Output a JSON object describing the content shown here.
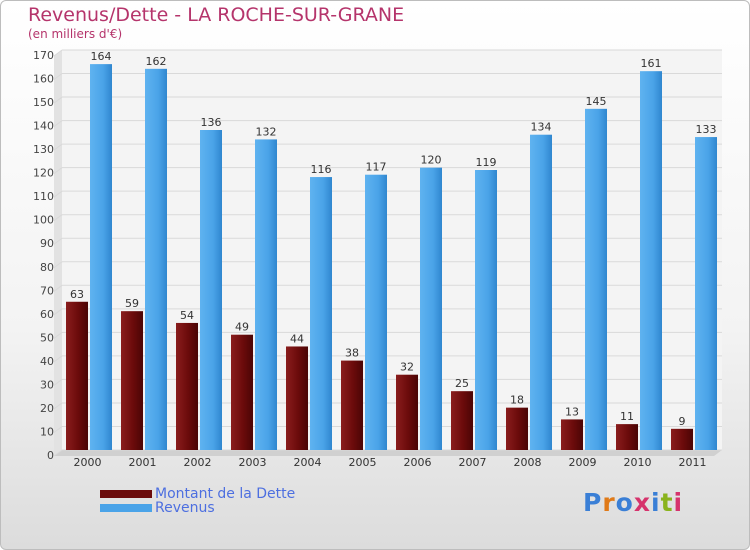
{
  "header": {
    "title": "Revenus/Dette - LA ROCHE-SUR-GRANE",
    "subtitle": "(en milliers d'€)"
  },
  "legend": {
    "items": [
      {
        "label": "Montant de la Dette",
        "color": "#6b0b0b"
      },
      {
        "label": "Revenus",
        "color": "#4aa3e8"
      }
    ]
  },
  "logo": {
    "text": "Proxiti",
    "colors": [
      "#3a7fd6",
      "#e07a18",
      "#3a7fd6",
      "#d6336c",
      "#3a7fd6",
      "#8ab31d",
      "#d6336c"
    ]
  },
  "chart_data": {
    "type": "bar",
    "title": "Revenus/Dette - LA ROCHE-SUR-GRANE",
    "subtitle": "(en milliers d'€)",
    "categories": [
      "2000",
      "2001",
      "2002",
      "2003",
      "2004",
      "2005",
      "2006",
      "2007",
      "2008",
      "2009",
      "2010",
      "2011"
    ],
    "series": [
      {
        "name": "Montant de la Dette",
        "color": "#6b0b0b",
        "values": [
          63,
          59,
          54,
          49,
          44,
          38,
          32,
          25,
          18,
          13,
          11,
          9
        ]
      },
      {
        "name": "Revenus",
        "color": "#4aa3e8",
        "values": [
          164,
          162,
          136,
          132,
          116,
          117,
          120,
          119,
          134,
          145,
          161,
          133
        ]
      }
    ],
    "ylim": [
      0,
      170
    ],
    "yticks": [
      0,
      10,
      20,
      30,
      40,
      50,
      60,
      70,
      80,
      90,
      100,
      110,
      120,
      130,
      140,
      150,
      160,
      170
    ],
    "grid": true,
    "legend_position": "bottom-left"
  }
}
